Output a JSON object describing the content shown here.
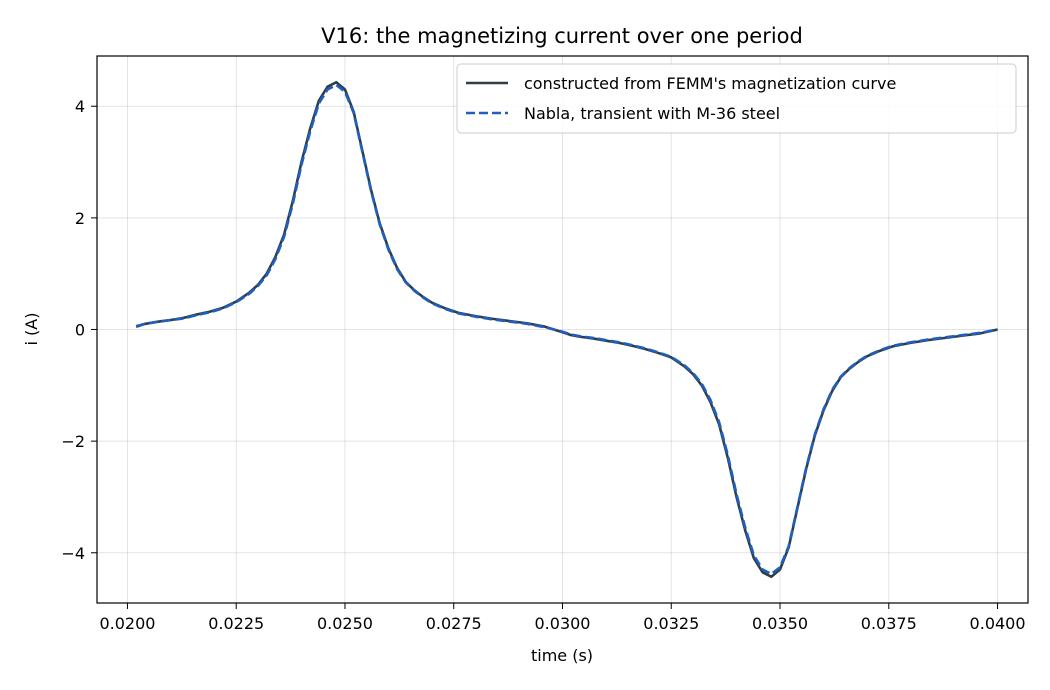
{
  "chart_data": {
    "type": "line",
    "title": "V16: the magnetizing current over one period",
    "xlabel": "time (s)",
    "ylabel": "i (A)",
    "xlim": [
      0.0193,
      0.0407
    ],
    "ylim": [
      -4.9,
      4.9
    ],
    "grid": true,
    "legend_position": "top-right",
    "xticks": [
      0.02,
      0.0225,
      0.025,
      0.0275,
      0.03,
      0.0325,
      0.035,
      0.0375,
      0.04
    ],
    "xtick_labels": [
      "0.0200",
      "0.0225",
      "0.0250",
      "0.0275",
      "0.0300",
      "0.0325",
      "0.0350",
      "0.0375",
      "0.0400"
    ],
    "yticks": [
      -4,
      -2,
      0,
      2,
      4
    ],
    "ytick_labels": [
      "−4",
      "−2",
      "0",
      "2",
      "4"
    ],
    "series": [
      {
        "name": "constructed from FEMM's magnetization curve",
        "color": "#2f3e46",
        "style": "solid",
        "x": [
          0.0202,
          0.0204,
          0.0207,
          0.021,
          0.0213,
          0.0216,
          0.0219,
          0.0222,
          0.0225,
          0.0228,
          0.023,
          0.0232,
          0.0234,
          0.0236,
          0.0238,
          0.024,
          0.0242,
          0.0244,
          0.0246,
          0.0248,
          0.025,
          0.0252,
          0.0254,
          0.0256,
          0.0258,
          0.026,
          0.0262,
          0.0264,
          0.0266,
          0.0268,
          0.027,
          0.0273,
          0.0276,
          0.028,
          0.0284,
          0.0288,
          0.0292,
          0.0296,
          0.03,
          0.0302,
          0.0304,
          0.0307,
          0.031,
          0.0313,
          0.0316,
          0.0319,
          0.0322,
          0.0325,
          0.0328,
          0.033,
          0.0332,
          0.0334,
          0.0336,
          0.0338,
          0.034,
          0.0342,
          0.0344,
          0.0346,
          0.0348,
          0.035,
          0.0352,
          0.0354,
          0.0356,
          0.0358,
          0.036,
          0.0362,
          0.0364,
          0.0366,
          0.0368,
          0.037,
          0.0373,
          0.0376,
          0.038,
          0.0384,
          0.0388,
          0.0392,
          0.0396,
          0.04
        ],
        "y": [
          0.05,
          0.1,
          0.14,
          0.17,
          0.21,
          0.27,
          0.32,
          0.39,
          0.5,
          0.66,
          0.8,
          1.0,
          1.3,
          1.7,
          2.3,
          3.0,
          3.6,
          4.1,
          4.35,
          4.43,
          4.3,
          3.9,
          3.2,
          2.5,
          1.9,
          1.45,
          1.1,
          0.85,
          0.7,
          0.58,
          0.48,
          0.38,
          0.3,
          0.24,
          0.19,
          0.15,
          0.11,
          0.05,
          -0.05,
          -0.1,
          -0.13,
          -0.16,
          -0.2,
          -0.24,
          -0.29,
          -0.35,
          -0.42,
          -0.5,
          -0.66,
          -0.8,
          -1.0,
          -1.3,
          -1.7,
          -2.3,
          -3.0,
          -3.6,
          -4.1,
          -4.35,
          -4.43,
          -4.3,
          -3.9,
          -3.2,
          -2.5,
          -1.9,
          -1.45,
          -1.1,
          -0.85,
          -0.7,
          -0.58,
          -0.48,
          -0.38,
          -0.3,
          -0.24,
          -0.19,
          -0.15,
          -0.11,
          -0.07,
          0.0
        ]
      },
      {
        "name": "Nabla, transient with M-36 steel",
        "color": "#1f5fbf",
        "style": "dashed",
        "x": [
          0.0202,
          0.0204,
          0.0207,
          0.021,
          0.0213,
          0.0216,
          0.0219,
          0.0222,
          0.0225,
          0.0228,
          0.023,
          0.0232,
          0.0234,
          0.0236,
          0.0238,
          0.024,
          0.0242,
          0.0244,
          0.0246,
          0.0248,
          0.025,
          0.0252,
          0.0254,
          0.0256,
          0.0258,
          0.026,
          0.0262,
          0.0264,
          0.0266,
          0.0268,
          0.027,
          0.0273,
          0.0276,
          0.028,
          0.0284,
          0.0288,
          0.0292,
          0.0296,
          0.03,
          0.0302,
          0.0304,
          0.0307,
          0.031,
          0.0313,
          0.0316,
          0.0319,
          0.0322,
          0.0325,
          0.0328,
          0.033,
          0.0332,
          0.0334,
          0.0336,
          0.0338,
          0.034,
          0.0342,
          0.0344,
          0.0346,
          0.0348,
          0.035,
          0.0352,
          0.0354,
          0.0356,
          0.0358,
          0.036,
          0.0362,
          0.0364,
          0.0366,
          0.0368,
          0.037,
          0.0373,
          0.0376,
          0.038,
          0.0384,
          0.0388,
          0.0392,
          0.0396,
          0.04
        ],
        "y": [
          0.06,
          0.1,
          0.14,
          0.17,
          0.2,
          0.26,
          0.31,
          0.38,
          0.49,
          0.64,
          0.78,
          0.97,
          1.26,
          1.66,
          2.25,
          2.95,
          3.55,
          4.05,
          4.3,
          4.38,
          4.26,
          3.88,
          3.18,
          2.48,
          1.88,
          1.43,
          1.08,
          0.84,
          0.69,
          0.57,
          0.47,
          0.37,
          0.29,
          0.23,
          0.18,
          0.14,
          0.1,
          0.04,
          -0.04,
          -0.09,
          -0.12,
          -0.15,
          -0.19,
          -0.23,
          -0.28,
          -0.34,
          -0.41,
          -0.49,
          -0.64,
          -0.78,
          -0.97,
          -1.26,
          -1.66,
          -2.25,
          -2.95,
          -3.55,
          -4.05,
          -4.3,
          -4.38,
          -4.26,
          -3.88,
          -3.18,
          -2.48,
          -1.88,
          -1.43,
          -1.08,
          -0.84,
          -0.69,
          -0.57,
          -0.47,
          -0.37,
          -0.29,
          -0.23,
          -0.18,
          -0.14,
          -0.1,
          -0.06,
          0.0
        ]
      }
    ]
  }
}
